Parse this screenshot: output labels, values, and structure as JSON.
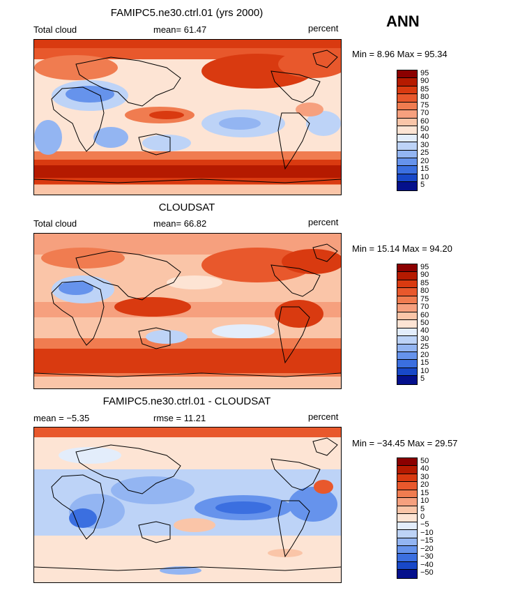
{
  "season": "ANN",
  "panels": [
    {
      "title": "FAMIPC5.ne30.ctrl.01 (yrs 2000)",
      "left_label": "Total cloud",
      "center_label": "mean=  61.47",
      "right_label": "percent",
      "minmax": "Min =   8.96 Max =  95.34",
      "colorbar": [
        "95",
        "90",
        "85",
        "80",
        "75",
        "70",
        "60",
        "50",
        "40",
        "30",
        "25",
        "20",
        "15",
        "10",
        "5"
      ]
    },
    {
      "title": "CLOUDSAT",
      "left_label": "Total cloud",
      "center_label": "mean=  66.82",
      "right_label": "percent",
      "minmax": "Min =  15.14 Max =  94.20",
      "colorbar": [
        "95",
        "90",
        "85",
        "80",
        "75",
        "70",
        "60",
        "50",
        "40",
        "30",
        "25",
        "20",
        "15",
        "10",
        "5"
      ]
    },
    {
      "title": "FAMIPC5.ne30.ctrl.01 - CLOUDSAT",
      "left_label": "mean =  −5.35",
      "center_label": "rmse =  11.21",
      "right_label": "percent",
      "minmax": "Min = −34.45 Max =  29.57",
      "colorbar": [
        "50",
        "40",
        "30",
        "20",
        "15",
        "10",
        "5",
        "0",
        "−5",
        "−10",
        "−15",
        "−20",
        "−30",
        "−40",
        "−50"
      ]
    }
  ],
  "colors": {
    "scale": [
      "#8b0000",
      "#b51a00",
      "#d93a10",
      "#e8582c",
      "#f07c50",
      "#f6a07e",
      "#fac5a8",
      "#fde4d4",
      "#e3edfb",
      "#bdd3f7",
      "#93b5f2",
      "#6693ec",
      "#3b6fe0",
      "#1848c8",
      "#04108c"
    ]
  }
}
